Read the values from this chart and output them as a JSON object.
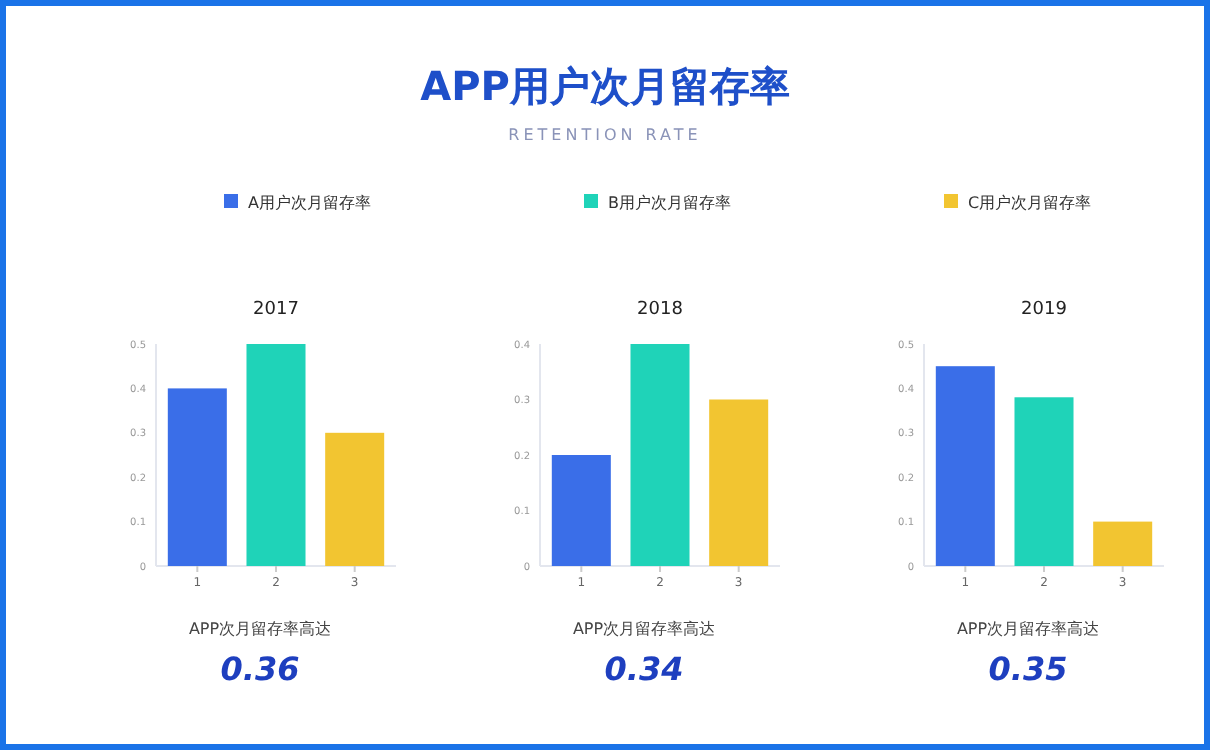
{
  "chart_data": [
    {
      "type": "other",
      "title": "APP用户次月留存率",
      "subtitle": "RETENTION RATE"
    },
    {
      "type": "bar",
      "title": "2017",
      "categories": [
        "1",
        "2",
        "3"
      ],
      "ylim": [
        0,
        0.5
      ],
      "yticks": [
        0,
        0.1,
        0.2,
        0.3,
        0.4,
        0.5
      ],
      "legend": "top",
      "series": [
        {
          "name": "A用户次月留存率",
          "color": "#3a6ee8",
          "values": [
            0.4,
            null,
            null
          ]
        },
        {
          "name": "B用户次月留存率",
          "color": "#1fd3b8",
          "values": [
            null,
            0.5,
            null
          ]
        },
        {
          "name": "C用户次月留存率",
          "color": "#f2c531",
          "values": [
            null,
            null,
            0.3
          ]
        }
      ],
      "annotations": [
        "APP次月留存率高达",
        "0.36"
      ]
    },
    {
      "type": "bar",
      "title": "2018",
      "categories": [
        "1",
        "2",
        "3"
      ],
      "ylim": [
        0,
        0.4
      ],
      "yticks": [
        0,
        0.1,
        0.2,
        0.3,
        0.4
      ],
      "series": [
        {
          "color": "#3a6ee8",
          "values": [
            0.2,
            null,
            null
          ]
        },
        {
          "color": "#1fd3b8",
          "values": [
            null,
            0.4,
            null
          ]
        },
        {
          "color": "#f2c531",
          "values": [
            null,
            null,
            0.3
          ]
        }
      ],
      "annotations": [
        "APP次月留存率高达",
        "0.34"
      ]
    },
    {
      "type": "bar",
      "title": "2019",
      "categories": [
        "1",
        "2",
        "3"
      ],
      "ylim": [
        0,
        0.5
      ],
      "yticks": [
        0,
        0.1,
        0.2,
        0.3,
        0.4,
        0.5
      ],
      "series": [
        {
          "color": "#3a6ee8",
          "values": [
            0.45,
            null,
            null
          ]
        },
        {
          "color": "#1fd3b8",
          "values": [
            null,
            0.38,
            null
          ]
        },
        {
          "color": "#f2c531",
          "values": [
            null,
            null,
            0.1
          ]
        }
      ],
      "annotations": [
        "APP次月留存率高达",
        "0.35"
      ]
    }
  ]
}
